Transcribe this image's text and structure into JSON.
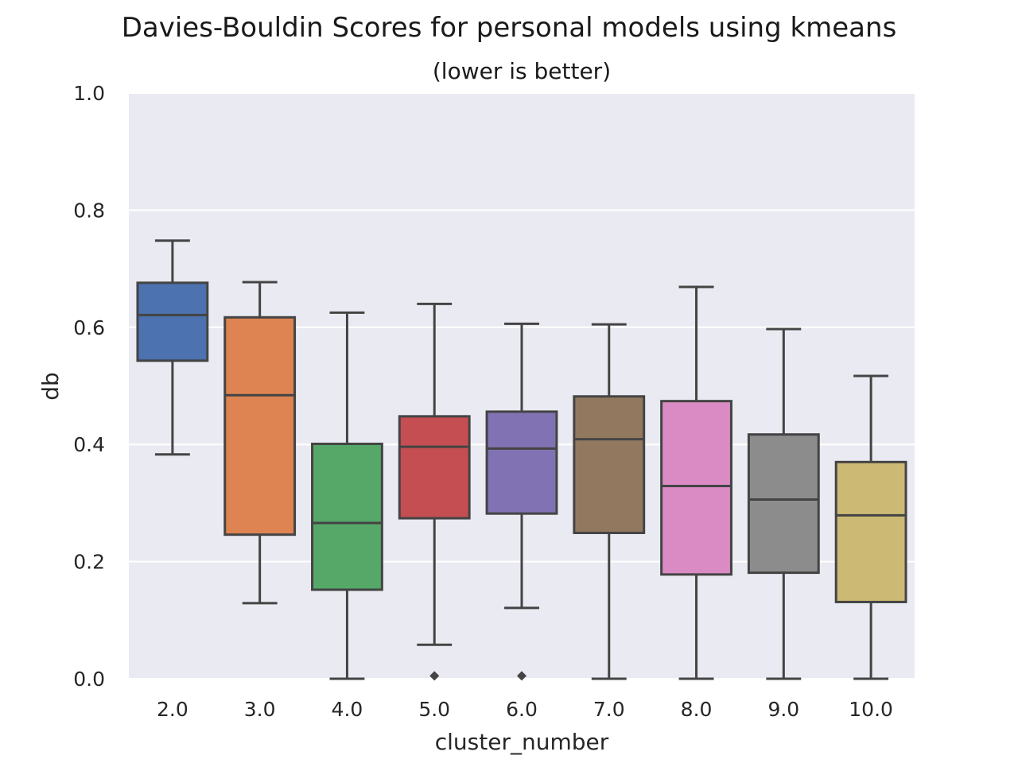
{
  "chart_data": {
    "type": "box",
    "title": "Davies-Bouldin Scores for personal models using kmeans",
    "subtitle": "(lower is better)",
    "xlabel": "cluster_number",
    "ylabel": "db",
    "ylim": [
      0.0,
      1.0
    ],
    "yticks": [
      "0.0",
      "0.2",
      "0.4",
      "0.6",
      "0.8",
      "1.0"
    ],
    "yticks_values": [
      0.0,
      0.2,
      0.4,
      0.6,
      0.8,
      1.0
    ],
    "grid": true,
    "background_color": "#EAEAF2",
    "edge_color": "#444444",
    "categories": [
      "2.0",
      "3.0",
      "4.0",
      "5.0",
      "6.0",
      "7.0",
      "8.0",
      "9.0",
      "10.0"
    ],
    "boxes": [
      {
        "category": "2.0",
        "whisker_low": 0.383,
        "q1": 0.543,
        "median": 0.621,
        "q3": 0.676,
        "whisker_high": 0.748,
        "outliers": [],
        "color": "#4C72B0"
      },
      {
        "category": "3.0",
        "whisker_low": 0.129,
        "q1": 0.246,
        "median": 0.484,
        "q3": 0.617,
        "whisker_high": 0.677,
        "outliers": [],
        "color": "#DD8452"
      },
      {
        "category": "4.0",
        "whisker_low": 0.0,
        "q1": 0.152,
        "median": 0.266,
        "q3": 0.401,
        "whisker_high": 0.625,
        "outliers": [],
        "color": "#55A868"
      },
      {
        "category": "5.0",
        "whisker_low": 0.058,
        "q1": 0.274,
        "median": 0.396,
        "q3": 0.448,
        "whisker_high": 0.64,
        "outliers": [
          0.005
        ],
        "color": "#C44E52"
      },
      {
        "category": "6.0",
        "whisker_low": 0.121,
        "q1": 0.282,
        "median": 0.393,
        "q3": 0.456,
        "whisker_high": 0.606,
        "outliers": [
          0.005
        ],
        "color": "#8172B3"
      },
      {
        "category": "7.0",
        "whisker_low": 0.0,
        "q1": 0.249,
        "median": 0.409,
        "q3": 0.482,
        "whisker_high": 0.605,
        "outliers": [],
        "color": "#937860"
      },
      {
        "category": "8.0",
        "whisker_low": 0.0,
        "q1": 0.178,
        "median": 0.329,
        "q3": 0.474,
        "whisker_high": 0.669,
        "outliers": [],
        "color": "#DA8BC3"
      },
      {
        "category": "9.0",
        "whisker_low": 0.0,
        "q1": 0.181,
        "median": 0.306,
        "q3": 0.417,
        "whisker_high": 0.597,
        "outliers": [],
        "color": "#8C8C8C"
      },
      {
        "category": "10.0",
        "whisker_low": 0.0,
        "q1": 0.131,
        "median": 0.279,
        "q3": 0.37,
        "whisker_high": 0.517,
        "outliers": [],
        "color": "#CCB974"
      }
    ]
  }
}
